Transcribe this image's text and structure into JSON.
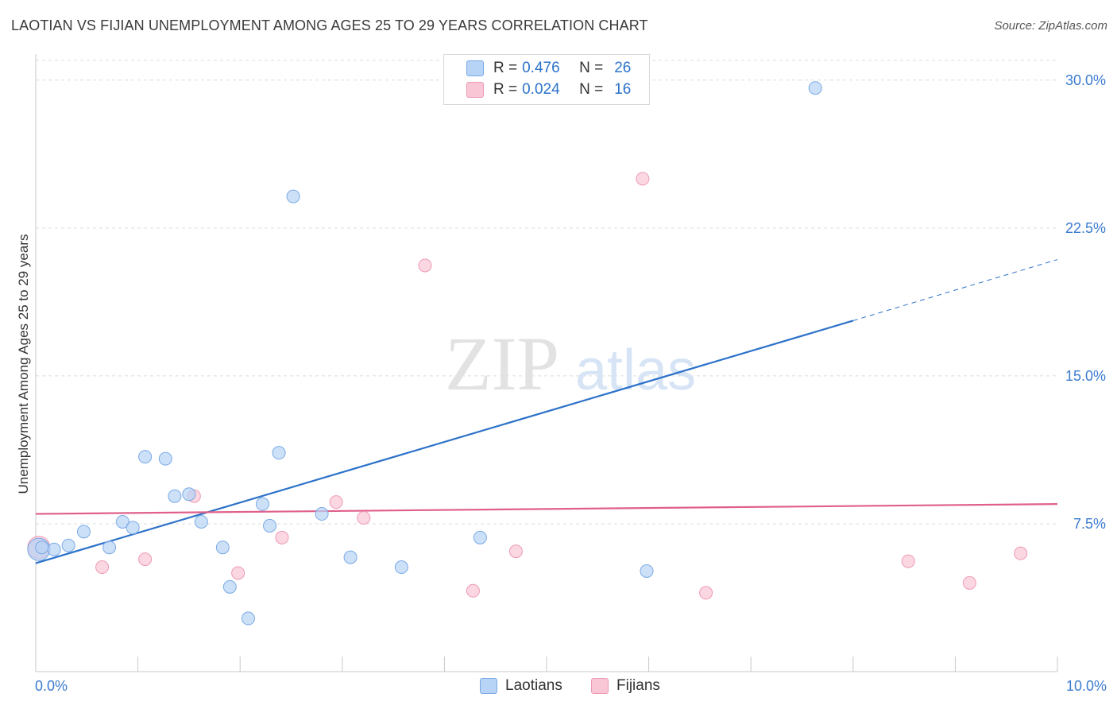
{
  "header": {
    "title": "LAOTIAN VS FIJIAN UNEMPLOYMENT AMONG AGES 25 TO 29 YEARS CORRELATION CHART",
    "source": "Source: ZipAtlas.com"
  },
  "watermark": {
    "zip": "ZIP",
    "atlas": "atlas"
  },
  "legend": {
    "rows": [
      {
        "r_label": "R =",
        "r_value": "0.476",
        "n_label": "N =",
        "n_value": "26",
        "color": "#b7d3f5"
      },
      {
        "r_label": "R =",
        "r_value": "0.024",
        "n_label": "N =",
        "n_value": "16",
        "color": "#f9c6d5"
      }
    ]
  },
  "bottom_legend": [
    "Laotians",
    "Fijians"
  ],
  "chart_data": {
    "type": "scatter",
    "title": "LAOTIAN VS FIJIAN UNEMPLOYMENT AMONG AGES 25 TO 29 YEARS CORRELATION CHART",
    "xlabel": "",
    "ylabel": "Unemployment Among Ages 25 to 29 years",
    "xlim": [
      0,
      10
    ],
    "ylim": [
      0,
      31
    ],
    "x_tick_labels": [
      "0.0%",
      "10.0%"
    ],
    "y_tick_labels": [
      "7.5%",
      "15.0%",
      "22.5%",
      "30.0%"
    ],
    "y_ticks": [
      7.5,
      15.0,
      22.5,
      30.0
    ],
    "x_ticks": [
      0,
      1,
      2,
      3,
      4,
      5,
      6,
      7,
      8,
      9,
      10
    ],
    "grid": true,
    "series": [
      {
        "name": "Laotians",
        "color": "#7aaae6",
        "fill": "#b7d3f5",
        "line_color": "#2c72c9",
        "trend": {
          "x0": 0.0,
          "y0": 5.5,
          "x1": 8.0,
          "y1": 17.8,
          "dash_x2": 10.0,
          "dash_y2": 20.9
        },
        "points": [
          [
            0.03,
            6.2
          ],
          [
            0.18,
            6.2
          ],
          [
            0.32,
            6.4
          ],
          [
            0.47,
            7.1
          ],
          [
            0.72,
            6.3
          ],
          [
            0.85,
            7.6
          ],
          [
            0.95,
            7.3
          ],
          [
            1.07,
            10.9
          ],
          [
            1.27,
            10.8
          ],
          [
            1.36,
            8.9
          ],
          [
            1.5,
            9.0
          ],
          [
            1.62,
            7.6
          ],
          [
            1.83,
            6.3
          ],
          [
            1.9,
            4.3
          ],
          [
            2.08,
            2.7
          ],
          [
            2.22,
            8.5
          ],
          [
            2.29,
            7.4
          ],
          [
            2.38,
            11.1
          ],
          [
            2.52,
            24.1
          ],
          [
            2.8,
            8.0
          ],
          [
            3.08,
            5.8
          ],
          [
            3.58,
            5.3
          ],
          [
            4.35,
            6.8
          ],
          [
            5.98,
            5.1
          ],
          [
            7.63,
            29.6
          ],
          [
            0.06,
            6.3
          ]
        ]
      },
      {
        "name": "Fijians",
        "color": "#ee9ab5",
        "fill": "#f9c6d5",
        "line_color": "#e0608b",
        "trend": {
          "x0": 0.0,
          "y0": 8.0,
          "x1": 10.0,
          "y1": 8.5
        },
        "points": [
          [
            0.03,
            6.3
          ],
          [
            0.65,
            5.3
          ],
          [
            1.07,
            5.7
          ],
          [
            1.55,
            8.9
          ],
          [
            1.98,
            5.0
          ],
          [
            2.41,
            6.8
          ],
          [
            2.94,
            8.6
          ],
          [
            3.21,
            7.8
          ],
          [
            3.81,
            20.6
          ],
          [
            4.28,
            4.1
          ],
          [
            4.7,
            6.1
          ],
          [
            5.94,
            25.0
          ],
          [
            6.56,
            4.0
          ],
          [
            8.54,
            5.6
          ],
          [
            9.14,
            4.5
          ],
          [
            9.64,
            6.0
          ]
        ]
      }
    ]
  }
}
